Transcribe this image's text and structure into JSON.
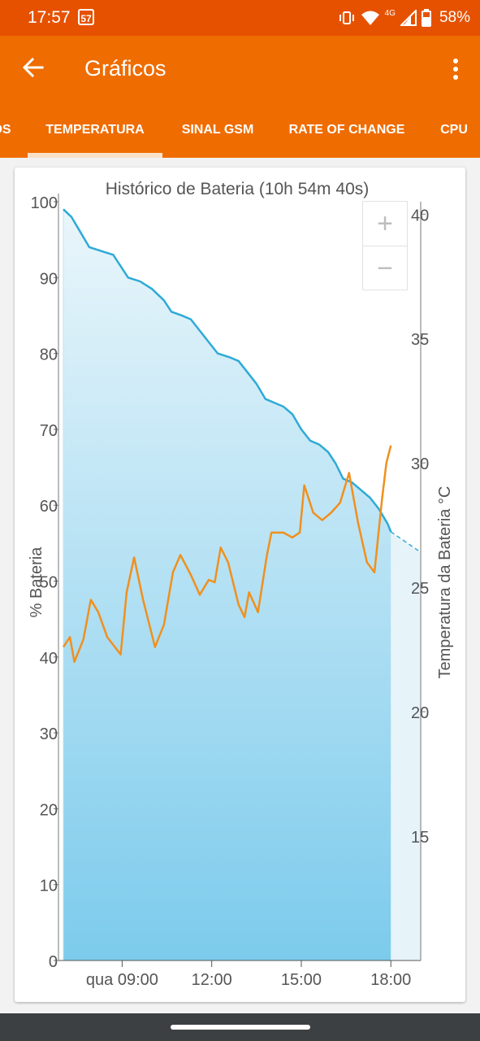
{
  "status_bar": {
    "time": "17:57",
    "notification": "57",
    "network": "4G",
    "battery": "58%"
  },
  "app_bar": {
    "title": "Gráficos",
    "back_icon": "arrow-back-icon",
    "menu_icon": "more-vert-icon"
  },
  "tabs": [
    {
      "label": "OS",
      "active": false
    },
    {
      "label": "TEMPERATURA",
      "active": true
    },
    {
      "label": "SINAL GSM",
      "active": false
    },
    {
      "label": "RATE OF CHANGE",
      "active": false
    },
    {
      "label": "CPU",
      "active": false
    }
  ],
  "zoom": {
    "in_label": "+",
    "out_label": "−"
  },
  "colors": {
    "accent": "#ef6c00",
    "status": "#e65100",
    "battery_line": "#2eaad6",
    "temp_line": "#f0901e"
  },
  "chart_data": {
    "type": "line",
    "title": "Histórico de Bateria (10h 54m 40s)",
    "ylabel": "% Bateria",
    "y2label": "Temperatura da Bateria °C",
    "x_ticks": [
      {
        "label": "qua 09:00",
        "h": 9
      },
      {
        "label": "12:00",
        "h": 12
      },
      {
        "label": "15:00",
        "h": 15
      },
      {
        "label": "18:00",
        "h": 18
      }
    ],
    "xlim": [
      7.03,
      19.0
    ],
    "ylim": [
      0,
      100
    ],
    "y_ticks": [
      0,
      10,
      20,
      30,
      40,
      50,
      60,
      70,
      80,
      90,
      100
    ],
    "y2lim": [
      10,
      40.5
    ],
    "y2_ticks": [
      15,
      20,
      25,
      30,
      35,
      40
    ],
    "grid": false,
    "series": [
      {
        "name": "% Bateria",
        "area": true,
        "projection_to": [
          19.0,
          53.8
        ],
        "points": [
          [
            7.03,
            99
          ],
          [
            7.3,
            98
          ],
          [
            7.6,
            96
          ],
          [
            7.9,
            94
          ],
          [
            8.3,
            93.5
          ],
          [
            8.7,
            93
          ],
          [
            8.95,
            91.5
          ],
          [
            9.2,
            90
          ],
          [
            9.6,
            89.5
          ],
          [
            10.0,
            88.5
          ],
          [
            10.4,
            87
          ],
          [
            10.65,
            85.5
          ],
          [
            11.0,
            85
          ],
          [
            11.3,
            84.5
          ],
          [
            11.6,
            83
          ],
          [
            11.9,
            81.5
          ],
          [
            12.2,
            80
          ],
          [
            12.6,
            79.5
          ],
          [
            12.9,
            79
          ],
          [
            13.2,
            77.5
          ],
          [
            13.5,
            76
          ],
          [
            13.8,
            74
          ],
          [
            14.1,
            73.5
          ],
          [
            14.4,
            73
          ],
          [
            14.7,
            72
          ],
          [
            15.0,
            70
          ],
          [
            15.3,
            68.5
          ],
          [
            15.6,
            68
          ],
          [
            15.9,
            67
          ],
          [
            16.15,
            65.5
          ],
          [
            16.4,
            63.5
          ],
          [
            16.7,
            63
          ],
          [
            17.0,
            62
          ],
          [
            17.3,
            61
          ],
          [
            17.6,
            59.5
          ],
          [
            17.9,
            57.5
          ],
          [
            18.0,
            56.5
          ]
        ]
      },
      {
        "name": "Temperatura da Bateria °C",
        "axis": "right",
        "points": [
          [
            7.03,
            22.6
          ],
          [
            7.25,
            23
          ],
          [
            7.4,
            22
          ],
          [
            7.7,
            22.9
          ],
          [
            7.95,
            24.5
          ],
          [
            8.2,
            24
          ],
          [
            8.5,
            23
          ],
          [
            8.95,
            22.3
          ],
          [
            9.15,
            24.8
          ],
          [
            9.4,
            26.2
          ],
          [
            9.7,
            24.5
          ],
          [
            10.1,
            22.6
          ],
          [
            10.4,
            23.5
          ],
          [
            10.7,
            25.6
          ],
          [
            10.95,
            26.3
          ],
          [
            11.3,
            25.5
          ],
          [
            11.6,
            24.7
          ],
          [
            11.9,
            25.3
          ],
          [
            12.1,
            25.2
          ],
          [
            12.3,
            26.6
          ],
          [
            12.55,
            26
          ],
          [
            12.9,
            24.3
          ],
          [
            13.1,
            23.8
          ],
          [
            13.25,
            24.8
          ],
          [
            13.55,
            24
          ],
          [
            13.85,
            26.3
          ],
          [
            14.0,
            27.2
          ],
          [
            14.4,
            27.2
          ],
          [
            14.7,
            27
          ],
          [
            14.95,
            27.2
          ],
          [
            15.1,
            29.1
          ],
          [
            15.4,
            28
          ],
          [
            15.7,
            27.7
          ],
          [
            16.0,
            28
          ],
          [
            16.3,
            28.4
          ],
          [
            16.6,
            29.6
          ],
          [
            16.9,
            27.6
          ],
          [
            17.2,
            26
          ],
          [
            17.45,
            25.6
          ],
          [
            17.7,
            28.5
          ],
          [
            17.85,
            30
          ],
          [
            18.0,
            30.7
          ]
        ]
      }
    ]
  }
}
